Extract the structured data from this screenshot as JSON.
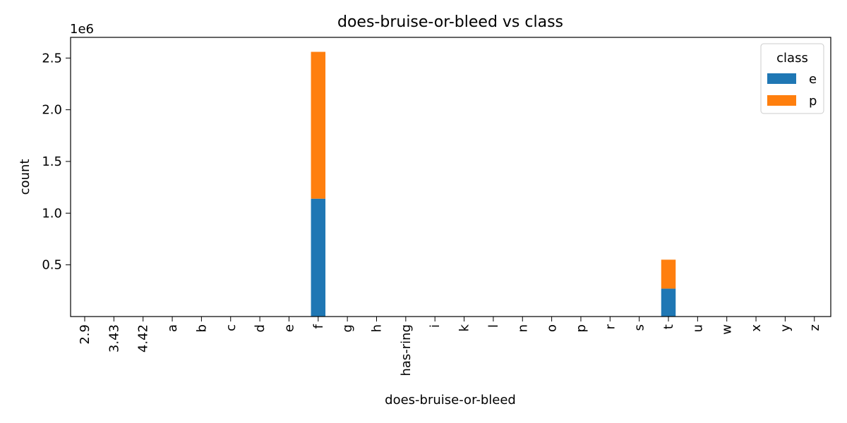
{
  "chart_data": {
    "type": "bar",
    "stacked": true,
    "title": "does-bruise-or-bleed vs class",
    "xlabel": "does-bruise-or-bleed",
    "ylabel": "count",
    "y_offset_label": "1e6",
    "y_ticks": [
      0.5,
      1.0,
      1.5,
      2.0,
      2.5
    ],
    "y_tick_labels": [
      "0.5",
      "1.0",
      "1.5",
      "2.0",
      "2.5"
    ],
    "ylim": [
      0,
      2.7
    ],
    "y_scale_note": "values in millions (x1e6)",
    "categories": [
      "2.9",
      "3.43",
      "4.42",
      "a",
      "b",
      "c",
      "d",
      "e",
      "f",
      "g",
      "h",
      "has-ring",
      "i",
      "k",
      "l",
      "n",
      "o",
      "p",
      "r",
      "s",
      "t",
      "u",
      "w",
      "x",
      "y",
      "z"
    ],
    "series": [
      {
        "name": "e",
        "color": "#1f77b4",
        "values": [
          0,
          0,
          0,
          0,
          0,
          0,
          0,
          0,
          1.14,
          0,
          0,
          0,
          0,
          0,
          0,
          0,
          0,
          0,
          0,
          0,
          0.27,
          0,
          0,
          0,
          0,
          0
        ]
      },
      {
        "name": "p",
        "color": "#ff7f0e",
        "values": [
          0,
          0,
          0,
          0,
          0,
          0,
          0,
          0,
          1.42,
          0,
          0,
          0,
          0,
          0,
          0,
          0,
          0,
          0,
          0,
          0,
          0.28,
          0,
          0,
          0,
          0,
          0
        ]
      }
    ],
    "legend": {
      "title": "class",
      "placement": "top-right"
    },
    "grid": false
  }
}
